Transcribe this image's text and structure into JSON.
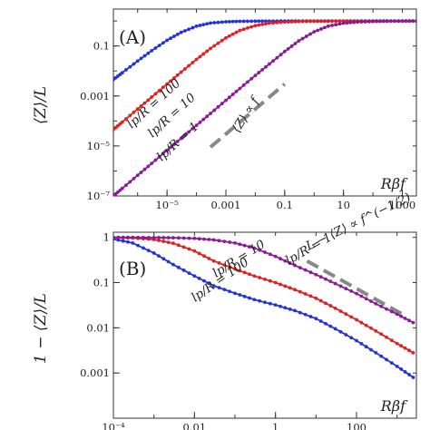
{
  "chart_data": [
    {
      "type": "line",
      "panel_label": "(A)",
      "ylabel": "⟨Z⟩/L",
      "corner_label": "Rβf",
      "xscale": "log",
      "yscale": "log",
      "xlim": [
        1.5e-07,
        3000
      ],
      "ylim": [
        1e-07,
        3
      ],
      "x_ticks": [
        {
          "value": 1e-05,
          "label": "10⁻⁵"
        },
        {
          "value": 0.001,
          "label": "0.001"
        },
        {
          "value": 0.1,
          "label": "0.1"
        },
        {
          "value": 10,
          "label": "10"
        },
        {
          "value": 1000,
          "label": "1000"
        }
      ],
      "y_ticks": [
        {
          "value": 0.1,
          "label": "0.1"
        },
        {
          "value": 0.001,
          "label": "0.001"
        },
        {
          "value": 1e-05,
          "label": "10⁻⁵"
        },
        {
          "value": 1e-07,
          "label": "10⁻⁷"
        }
      ],
      "series": [
        {
          "name": "lp/R = 100",
          "color": "#2233dd",
          "x": [
            1.5e-07,
            3e-07,
            1e-06,
            3e-06,
            1e-05,
            3e-05,
            0.0001,
            0.0003,
            0.001,
            0.003,
            0.01,
            0.03,
            0.1,
            0.3,
            1,
            3,
            10,
            30,
            100,
            300,
            1000,
            3000
          ],
          "y": [
            0.0045,
            0.0085,
            0.025,
            0.065,
            0.17,
            0.35,
            0.62,
            0.83,
            0.93,
            0.97,
            0.985,
            0.992,
            0.995,
            0.997,
            0.998,
            0.999,
            0.999,
            0.999,
            0.999,
            0.999,
            0.999,
            0.999
          ]
        },
        {
          "name": "lp/R = 10",
          "color": "#e02020",
          "x": [
            1.5e-07,
            3e-07,
            1e-06,
            3e-06,
            1e-05,
            3e-05,
            0.0001,
            0.0003,
            0.001,
            0.003,
            0.01,
            0.03,
            0.1,
            0.3,
            1,
            3,
            10,
            30,
            100,
            300,
            1000,
            3000
          ],
          "y": [
            4.5e-05,
            9e-05,
            0.0003,
            0.0009,
            0.003,
            0.009,
            0.029,
            0.08,
            0.21,
            0.42,
            0.65,
            0.82,
            0.91,
            0.955,
            0.975,
            0.985,
            0.99,
            0.994,
            0.996,
            0.997,
            0.998,
            0.999
          ]
        },
        {
          "name": "lp/R = 1",
          "color": "#8a1a9a",
          "x": [
            1.5e-07,
            3e-07,
            1e-06,
            3e-06,
            1e-05,
            3e-05,
            0.0001,
            0.0003,
            0.001,
            0.003,
            0.01,
            0.03,
            0.1,
            0.3,
            1,
            3,
            10,
            30,
            100,
            300,
            1000,
            3000
          ],
          "y": [
            1e-07,
            2e-07,
            6.7e-07,
            2e-06,
            6.7e-06,
            2e-05,
            6.7e-05,
            0.0002,
            0.00067,
            0.002,
            0.0066,
            0.019,
            0.06,
            0.16,
            0.37,
            0.62,
            0.82,
            0.91,
            0.955,
            0.975,
            0.985,
            0.99
          ]
        }
      ],
      "curve_labels": [
        {
          "text": "lp/R = 100",
          "series": 0
        },
        {
          "text": "lp/R = 10",
          "series": 1
        },
        {
          "text": "lp/R = 1",
          "series": 2
        }
      ],
      "reference": {
        "text": "⟨Z⟩ ∝ f",
        "x": [
          0.0003,
          0.1
        ],
        "y": [
          9e-06,
          0.003
        ],
        "color": "#888888"
      }
    },
    {
      "type": "line",
      "panel_label": "(B)",
      "ylabel": "1 − ⟨Z⟩/L",
      "corner_label": "Rβf",
      "xscale": "log",
      "yscale": "log",
      "xlim": [
        0.0001,
        3000
      ],
      "ylim": [
        0.0001,
        1.3
      ],
      "x_ticks": [
        {
          "value": 0.0001,
          "label": "10⁻⁴"
        },
        {
          "value": 0.01,
          "label": "0.01"
        },
        {
          "value": 1,
          "label": "1"
        },
        {
          "value": 100,
          "label": "100"
        }
      ],
      "y_ticks": [
        {
          "value": 1,
          "label": "1"
        },
        {
          "value": 0.1,
          "label": "0.1"
        },
        {
          "value": 0.01,
          "label": "0.01"
        },
        {
          "value": 0.001,
          "label": "0.001"
        }
      ],
      "series": [
        {
          "name": "lp/R = 100",
          "color": "#2233dd",
          "x": [
            0.0001,
            0.0003,
            0.001,
            0.003,
            0.01,
            0.03,
            0.1,
            0.3,
            1,
            3,
            10,
            30,
            100,
            300,
            1000,
            2500
          ],
          "y": [
            0.92,
            0.75,
            0.45,
            0.25,
            0.14,
            0.085,
            0.058,
            0.042,
            0.032,
            0.024,
            0.016,
            0.0095,
            0.0052,
            0.0028,
            0.0014,
            0.0008
          ]
        },
        {
          "name": "lp/R = 10",
          "color": "#e02020",
          "x": [
            0.0001,
            0.0003,
            0.001,
            0.003,
            0.01,
            0.03,
            0.1,
            0.3,
            1,
            3,
            10,
            30,
            100,
            300,
            1000,
            2500
          ],
          "y": [
            0.99,
            0.97,
            0.9,
            0.74,
            0.5,
            0.3,
            0.2,
            0.14,
            0.1,
            0.07,
            0.045,
            0.027,
            0.015,
            0.0085,
            0.0045,
            0.0028
          ]
        },
        {
          "name": "lp/R = 1",
          "color": "#8a1a9a",
          "x": [
            0.0001,
            0.0003,
            0.001,
            0.003,
            0.01,
            0.03,
            0.1,
            0.3,
            1,
            3,
            10,
            30,
            100,
            300,
            1000,
            2500
          ],
          "y": [
            1.0,
            1.0,
            0.99,
            0.98,
            0.95,
            0.88,
            0.75,
            0.58,
            0.38,
            0.24,
            0.15,
            0.095,
            0.057,
            0.034,
            0.02,
            0.013
          ]
        }
      ],
      "curve_labels": [
        {
          "text": "lp/R = 100",
          "series": 0
        },
        {
          "text": "lp/R = 10",
          "series": 1
        },
        {
          "text": "lp/R = 1",
          "series": 2
        }
      ],
      "reference": {
        "text": "L − ⟨Z⟩ ∝ f^(−1/2)",
        "x": [
          6,
          1500
        ],
        "y": [
          0.3,
          0.019
        ],
        "color": "#888888"
      }
    }
  ]
}
